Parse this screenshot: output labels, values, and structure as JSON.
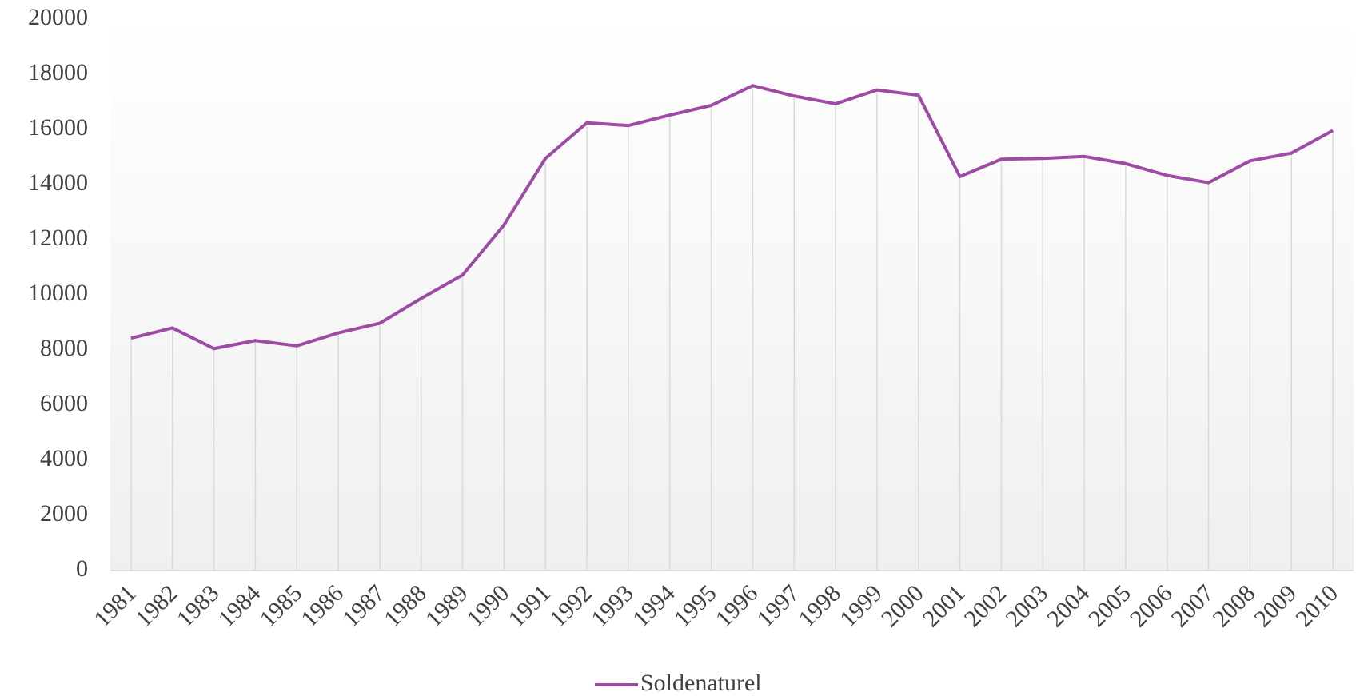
{
  "chart_data": {
    "type": "line",
    "categories": [
      "1981",
      "1982",
      "1983",
      "1984",
      "1985",
      "1986",
      "1987",
      "1988",
      "1989",
      "1990",
      "1991",
      "1992",
      "1993",
      "1994",
      "1995",
      "1996",
      "1997",
      "1998",
      "1999",
      "2000",
      "2001",
      "2002",
      "2003",
      "2004",
      "2005",
      "2006",
      "2007",
      "2008",
      "2009",
      "2010"
    ],
    "series": [
      {
        "name": "Soldenaturel",
        "color": "#9e4ba6",
        "values": [
          8430,
          8800,
          8050,
          8340,
          8150,
          8620,
          8970,
          9870,
          10720,
          12540,
          14950,
          16240,
          16140,
          16520,
          16870,
          17590,
          17210,
          16930,
          17430,
          17240,
          14290,
          14920,
          14950,
          15020,
          14760,
          14330,
          14070,
          14860,
          15140,
          15960
        ]
      }
    ],
    "ylim": [
      0,
      20000
    ],
    "yticks": [
      0,
      2000,
      4000,
      6000,
      8000,
      10000,
      12000,
      14000,
      16000,
      18000,
      20000
    ],
    "grid": false,
    "drop_lines": true,
    "legend": "bottom"
  }
}
